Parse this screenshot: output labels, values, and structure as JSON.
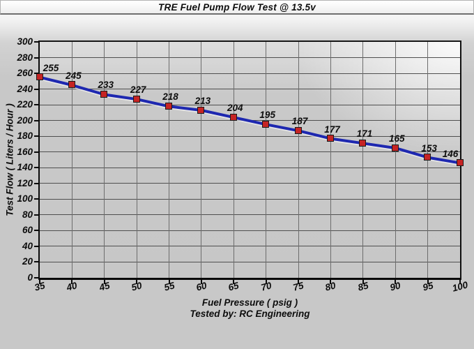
{
  "chart_data": {
    "type": "line",
    "title": "TRE Fuel Pump Flow Test @ 13.5v",
    "xlabel": "Fuel Pressure ( psig )",
    "ylabel": "Test Flow ( Liters / Hour )",
    "footnote": "Tested by: RC Engineering",
    "x": [
      35,
      40,
      45,
      50,
      55,
      60,
      65,
      70,
      75,
      80,
      85,
      90,
      95,
      100
    ],
    "values": [
      255,
      245,
      233,
      227,
      218,
      213,
      204,
      195,
      187,
      177,
      171,
      165,
      153,
      146
    ],
    "xticks": [
      35,
      40,
      45,
      50,
      55,
      60,
      65,
      70,
      75,
      80,
      85,
      90,
      95,
      100
    ],
    "yticks": [
      0,
      20,
      40,
      60,
      80,
      100,
      120,
      140,
      160,
      180,
      200,
      220,
      240,
      260,
      280,
      300
    ],
    "xlim": [
      35,
      100
    ],
    "ylim": [
      0,
      300
    ],
    "grid": true,
    "legend": "none",
    "data_labels": true,
    "marker": "square",
    "colors": {
      "line": "#1e28b0",
      "marker_fill": "#c62424",
      "marker_border": "#1a1a1a",
      "gridline_h": "#4f4f4f",
      "gridline_v": "#6d6d6d",
      "axis": "#0a0a0a",
      "plot_bg": "#c8c8c8",
      "page_bg": "#c9c9c9",
      "text": "#0d0d0d"
    }
  }
}
